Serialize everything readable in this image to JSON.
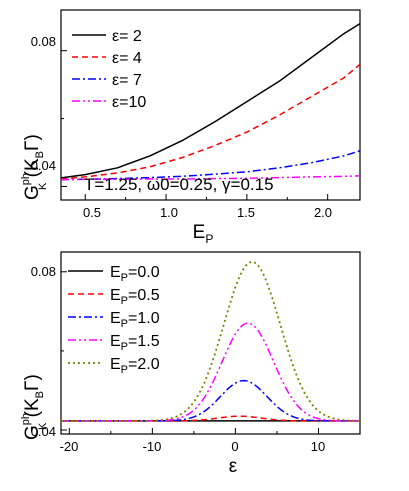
{
  "chart_data": [
    {
      "type": "line",
      "xlabel": {
        "main": "E",
        "sub": "P"
      },
      "ylabel": {
        "main": "G",
        "sup": "ph",
        "sub": "K",
        "unit_open": " (K",
        "unit_sub": "B",
        "unit_close": "Γ)"
      },
      "xlim": [
        0.35,
        2.2
      ],
      "ylim": [
        0.036,
        0.092
      ],
      "xticks": [
        0.5,
        1.0,
        1.5,
        2.0
      ],
      "xtick_labels": [
        "0.5",
        "1.0",
        "1.5",
        "2.0"
      ],
      "yticks": [
        0.04,
        0.08
      ],
      "ytick_labels": [
        "0.04",
        "0.08"
      ],
      "annotation": "T=1.25, ω0=0.25, γ=0.15",
      "legend_position": "top-left",
      "series": [
        {
          "name": "ε= 2",
          "color": "#000000",
          "dash": "solid",
          "x": [
            0.35,
            0.5,
            0.7,
            0.9,
            1.1,
            1.3,
            1.5,
            1.7,
            1.9,
            2.1,
            2.2
          ],
          "y": [
            0.0425,
            0.0435,
            0.0455,
            0.049,
            0.0535,
            0.059,
            0.065,
            0.071,
            0.078,
            0.085,
            0.088
          ]
        },
        {
          "name": "ε= 4",
          "color": "#ff0000",
          "dash": "dash",
          "x": [
            0.35,
            0.5,
            0.7,
            0.9,
            1.1,
            1.3,
            1.5,
            1.7,
            1.9,
            2.1,
            2.2
          ],
          "y": [
            0.0422,
            0.0428,
            0.044,
            0.0458,
            0.0485,
            0.052,
            0.056,
            0.061,
            0.0665,
            0.072,
            0.076
          ]
        },
        {
          "name": "ε= 7",
          "color": "#0000ff",
          "dash": "dashdot",
          "x": [
            0.35,
            0.5,
            0.7,
            0.9,
            1.1,
            1.3,
            1.5,
            1.7,
            1.9,
            2.1,
            2.2
          ],
          "y": [
            0.042,
            0.0421,
            0.0423,
            0.0426,
            0.043,
            0.0436,
            0.0443,
            0.0455,
            0.047,
            0.049,
            0.0505
          ]
        },
        {
          "name": "ε=10",
          "color": "#ff00ff",
          "dash": "dashdotdot",
          "x": [
            0.35,
            0.5,
            0.7,
            0.9,
            1.1,
            1.3,
            1.5,
            1.7,
            1.9,
            2.1,
            2.2
          ],
          "y": [
            0.042,
            0.0421,
            0.0421,
            0.0422,
            0.0422,
            0.0423,
            0.0424,
            0.0426,
            0.0428,
            0.043,
            0.0431
          ]
        }
      ]
    },
    {
      "type": "line",
      "xlabel": {
        "main": "ε"
      },
      "ylabel": {
        "main": "G",
        "sup": "ph",
        "sub": "K",
        "unit_open": " (K",
        "unit_sub": "B",
        "unit_close": "Γ)"
      },
      "xlim": [
        -21,
        15
      ],
      "ylim": [
        0.039,
        0.085
      ],
      "xticks": [
        -20,
        -10,
        0,
        10
      ],
      "xtick_labels": [
        "-20",
        "-10",
        "0",
        "10"
      ],
      "yticks": [
        0.04,
        0.08
      ],
      "ytick_labels": [
        "0.04",
        "0.08"
      ],
      "legend_position": "top-left",
      "series": [
        {
          "name_main": "E",
          "name_sub": "P",
          "name_value": "=0.0",
          "color": "#000000",
          "dash": "solid",
          "peak_x": 0.0,
          "base": 0.0423,
          "amp": 0.0,
          "sigma": 3.0
        },
        {
          "name_main": "E",
          "name_sub": "P",
          "name_value": "=0.5",
          "color": "#ff0000",
          "dash": "dash",
          "peak_x": 0.5,
          "base": 0.0423,
          "amp": 0.0012,
          "sigma": 2.6
        },
        {
          "name_main": "E",
          "name_sub": "P",
          "name_value": "=1.0",
          "color": "#0000ff",
          "dash": "dashdot",
          "peak_x": 1.0,
          "base": 0.0423,
          "amp": 0.0102,
          "sigma": 2.8
        },
        {
          "name_main": "E",
          "name_sub": "P",
          "name_value": "=1.5",
          "color": "#ff00ff",
          "dash": "dashdotdot",
          "peak_x": 1.5,
          "base": 0.0423,
          "amp": 0.0247,
          "sigma": 3.1
        },
        {
          "name_main": "E",
          "name_sub": "P",
          "name_value": "=2.0",
          "color": "#808000",
          "dash": "dot",
          "peak_x": 2.0,
          "base": 0.0423,
          "amp": 0.0402,
          "sigma": 3.4
        }
      ]
    }
  ]
}
